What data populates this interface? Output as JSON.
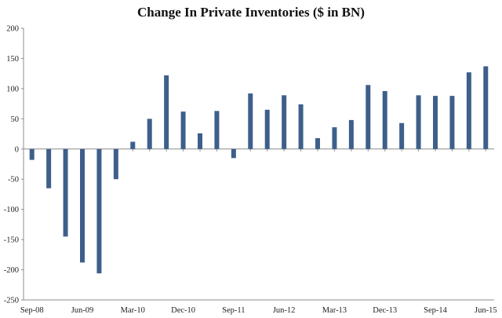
{
  "chart_data": {
    "type": "bar",
    "title": "Change In Private Inventories ($ in BN)",
    "xlabel": "",
    "ylabel": "",
    "ylim": [
      -250,
      200
    ],
    "y_ticks": [
      200,
      150,
      100,
      50,
      0,
      -50,
      -100,
      -150,
      -200,
      -250
    ],
    "grid": false,
    "legend": "none",
    "bar_color": "#3d5f8a",
    "categories": [
      "Sep-08",
      "Dec-08",
      "Mar-09",
      "Jun-09",
      "Sep-09",
      "Dec-09",
      "Mar-10",
      "Jun-10",
      "Sep-10",
      "Dec-10",
      "Mar-11",
      "Jun-11",
      "Sep-11",
      "Dec-11",
      "Mar-12",
      "Jun-12",
      "Sep-12",
      "Dec-12",
      "Mar-13",
      "Jun-13",
      "Sep-13",
      "Dec-13",
      "Mar-14",
      "Jun-14",
      "Sep-14",
      "Dec-14",
      "Mar-15",
      "Jun-15"
    ],
    "x_tick_labels": [
      "Sep-08",
      "Jun-09",
      "Mar-10",
      "Dec-10",
      "Sep-11",
      "Jun-12",
      "Mar-13",
      "Dec-13",
      "Sep-14",
      "Jun-15"
    ],
    "values": [
      -18,
      -65,
      -145,
      -188,
      -206,
      -50,
      12,
      50,
      122,
      62,
      26,
      63,
      -15,
      92,
      65,
      89,
      74,
      18,
      36,
      48,
      106,
      96,
      43,
      89,
      88,
      88,
      127,
      137
    ]
  }
}
